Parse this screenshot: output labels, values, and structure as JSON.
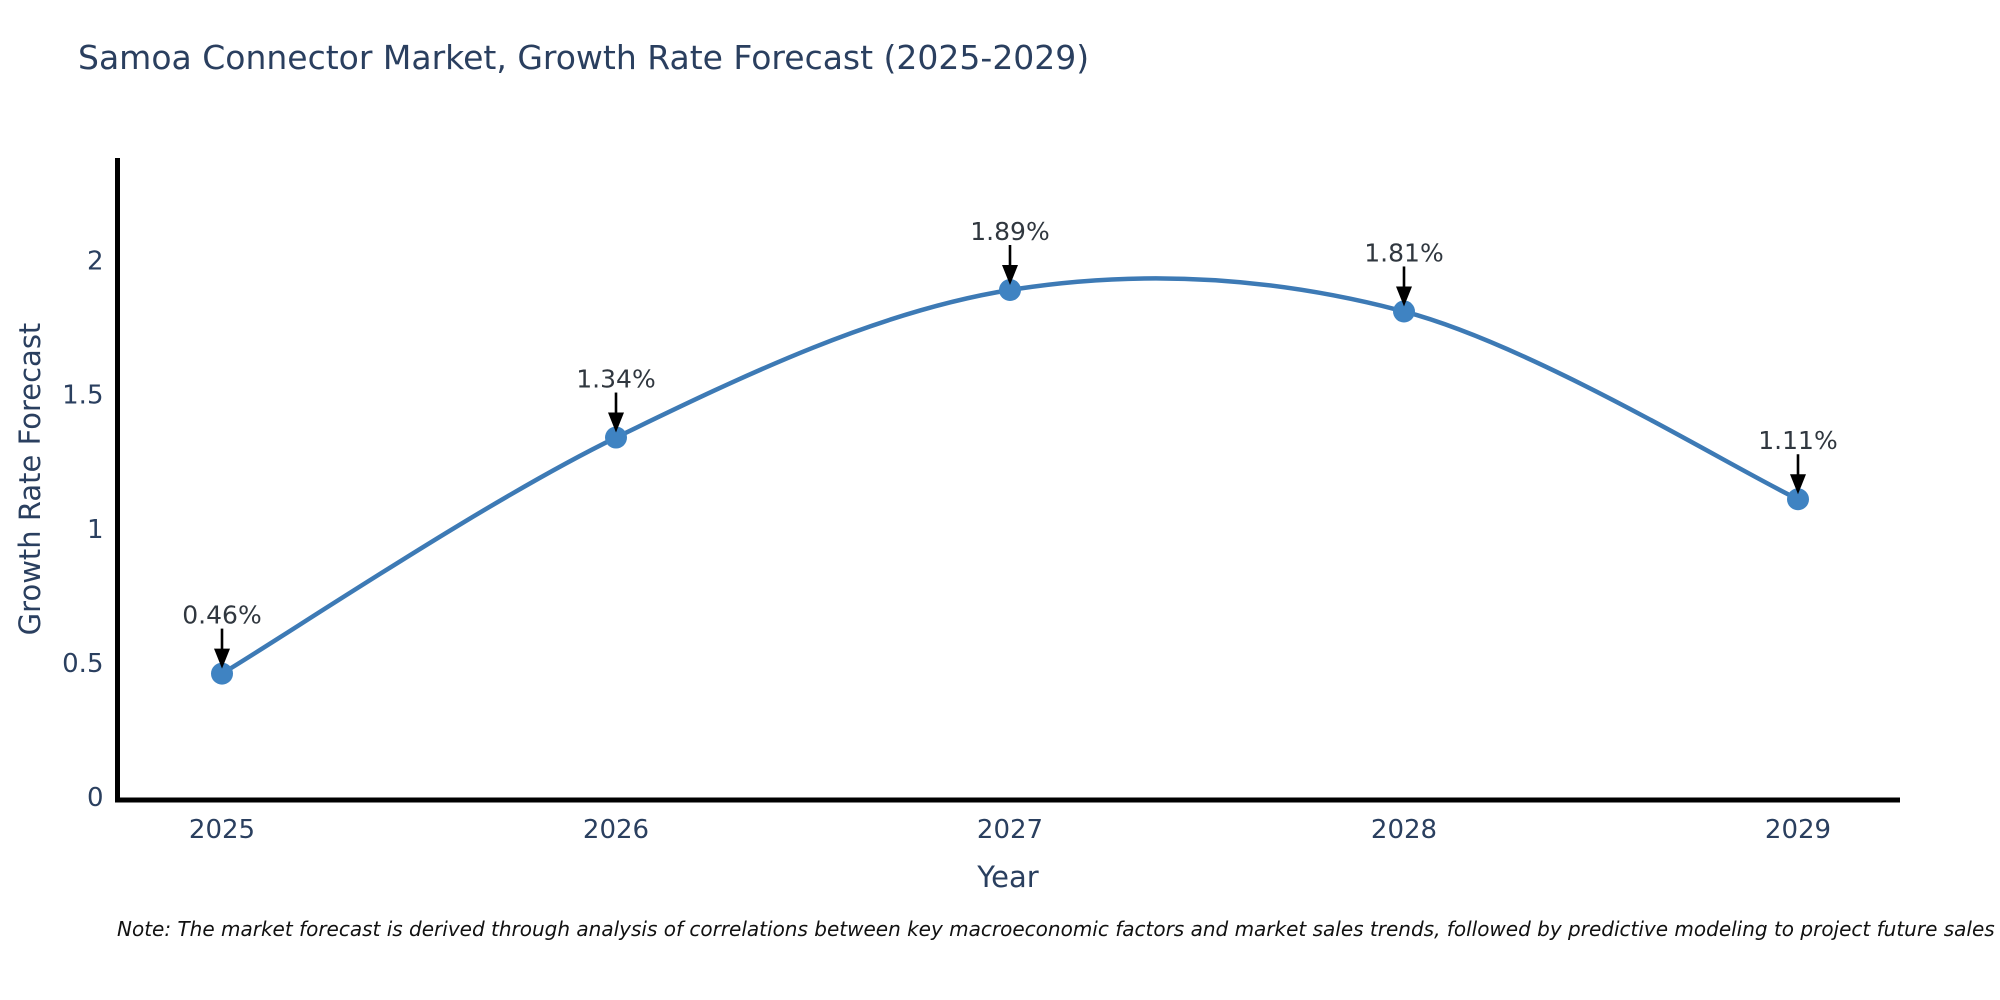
{
  "title": "Samoa Connector Market, Growth Rate Forecast (2025-2029)",
  "note": "Note: The market forecast is derived through analysis of correlations between key macroeconomic factors and market sales trends, followed by predictive modeling to project future sales",
  "chart_data": {
    "type": "line",
    "line_shape": "spline",
    "x": [
      2025,
      2026,
      2027,
      2028,
      2029
    ],
    "values": [
      0.46,
      1.34,
      1.89,
      1.81,
      1.11
    ],
    "point_labels": [
      "0.46%",
      "1.34%",
      "1.89%",
      "1.81%",
      "1.11%"
    ],
    "title": "Samoa Connector Market, Growth Rate Forecast (2025-2029)",
    "xlabel": "Year",
    "ylabel": "Growth Rate Forecast",
    "x_tick_labels": [
      "2025",
      "2026",
      "2027",
      "2028",
      "2029"
    ],
    "y_ticks": [
      0,
      0.5,
      1,
      1.5,
      2
    ],
    "y_tick_labels": [
      "0",
      "0.5",
      "1",
      "1.5",
      "2"
    ],
    "ylim": [
      0,
      2.38
    ],
    "grid": false,
    "legend_position": "none",
    "colors": {
      "line": "#3d7ab5",
      "marker": "#3f83c2",
      "annotation_arrow": "#000000",
      "annotation_text": "#30373f",
      "axis_line": "#000000",
      "tick_text": "#2a3f5f",
      "title_text": "#2a3f5f"
    }
  }
}
